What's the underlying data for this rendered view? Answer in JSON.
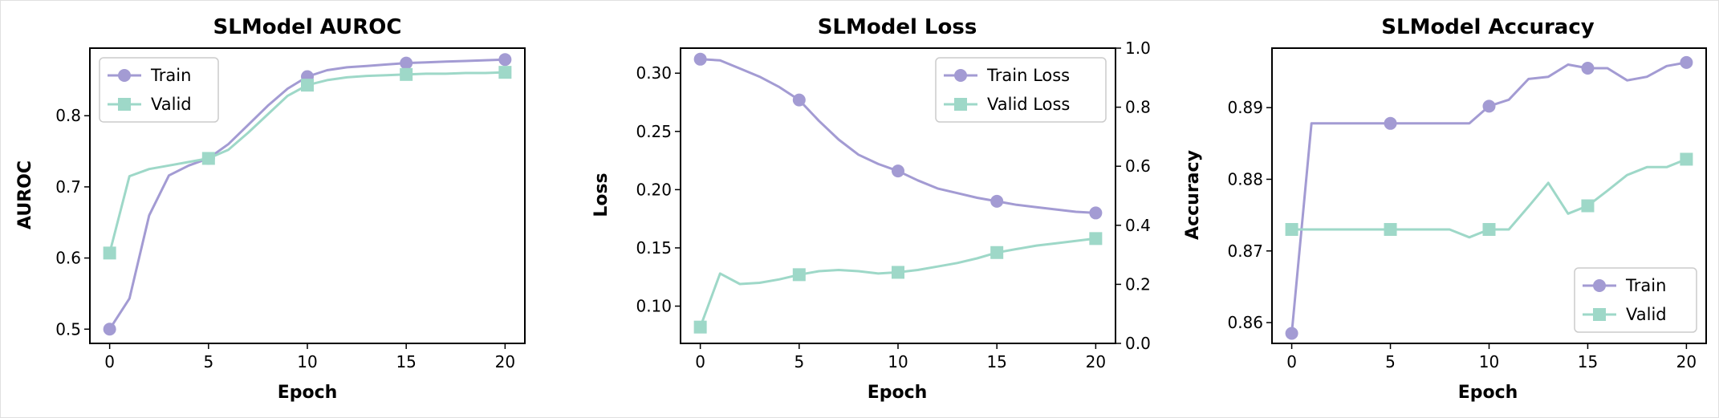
{
  "chart_data": [
    {
      "type": "line",
      "title": "SLModel AUROC",
      "xlabel": "Epoch",
      "ylabel": "AUROC",
      "xlim": [
        -1,
        21
      ],
      "ylim": [
        0.48,
        0.895
      ],
      "xticks": [
        0,
        5,
        10,
        15,
        20
      ],
      "yticks": [
        0.5,
        0.6,
        0.7,
        0.8
      ],
      "legend_position": "upper-left",
      "x": [
        0,
        1,
        2,
        3,
        4,
        5,
        6,
        7,
        8,
        9,
        10,
        11,
        12,
        13,
        14,
        15,
        16,
        17,
        18,
        19,
        20
      ],
      "series": [
        {
          "name": "Train",
          "color": "#A39BD3",
          "marker": "circle",
          "values": [
            0.5,
            0.543,
            0.66,
            0.716,
            0.73,
            0.74,
            0.76,
            0.787,
            0.814,
            0.838,
            0.855,
            0.864,
            0.868,
            0.87,
            0.872,
            0.874,
            0.875,
            0.876,
            0.877,
            0.878,
            0.879
          ]
        },
        {
          "name": "Valid",
          "color": "#9ED8C8",
          "marker": "square",
          "values": [
            0.607,
            0.715,
            0.725,
            0.73,
            0.735,
            0.74,
            0.752,
            0.776,
            0.802,
            0.828,
            0.843,
            0.85,
            0.854,
            0.856,
            0.857,
            0.858,
            0.859,
            0.859,
            0.86,
            0.86,
            0.861
          ]
        }
      ]
    },
    {
      "type": "line",
      "title": "SLModel Loss",
      "xlabel": "Epoch",
      "ylabel": "Loss",
      "xlim": [
        -1,
        21
      ],
      "ylim": [
        0.068,
        0.3215
      ],
      "y2lim": [
        0.0,
        1.0
      ],
      "xticks": [
        0,
        5,
        10,
        15,
        20
      ],
      "yticks": [
        0.1,
        0.15,
        0.2,
        0.25,
        0.3
      ],
      "y2ticks": [
        0.0,
        0.2,
        0.4,
        0.6,
        0.8,
        1.0
      ],
      "legend_position": "upper-right",
      "x": [
        0,
        1,
        2,
        3,
        4,
        5,
        6,
        7,
        8,
        9,
        10,
        11,
        12,
        13,
        14,
        15,
        16,
        17,
        18,
        19,
        20
      ],
      "series": [
        {
          "name": "Train Loss",
          "color": "#A39BD3",
          "marker": "circle",
          "values": [
            0.312,
            0.311,
            0.304,
            0.297,
            0.288,
            0.277,
            0.259,
            0.243,
            0.23,
            0.222,
            0.216,
            0.208,
            0.201,
            0.197,
            0.193,
            0.19,
            0.187,
            0.185,
            0.183,
            0.181,
            0.18
          ]
        },
        {
          "name": "Valid Loss",
          "color": "#9ED8C8",
          "marker": "square",
          "values": [
            0.082,
            0.128,
            0.119,
            0.12,
            0.123,
            0.127,
            0.13,
            0.131,
            0.13,
            0.128,
            0.129,
            0.131,
            0.134,
            0.137,
            0.141,
            0.146,
            0.149,
            0.152,
            0.154,
            0.156,
            0.158
          ]
        }
      ]
    },
    {
      "type": "line",
      "title": "SLModel Accuracy",
      "xlabel": "Epoch",
      "ylabel": "Accuracy",
      "xlim": [
        -1,
        21
      ],
      "ylim": [
        0.8571,
        0.8983
      ],
      "xticks": [
        0,
        5,
        10,
        15,
        20
      ],
      "yticks": [
        0.86,
        0.87,
        0.88,
        0.89
      ],
      "legend_position": "lower-right",
      "x": [
        0,
        1,
        2,
        3,
        4,
        5,
        6,
        7,
        8,
        9,
        10,
        11,
        12,
        13,
        14,
        15,
        16,
        17,
        18,
        19,
        20
      ],
      "series": [
        {
          "name": "Train",
          "color": "#A39BD3",
          "marker": "circle",
          "values": [
            0.8585,
            0.8878,
            0.8878,
            0.8878,
            0.8878,
            0.8878,
            0.8878,
            0.8878,
            0.8878,
            0.8878,
            0.8902,
            0.8911,
            0.894,
            0.8943,
            0.896,
            0.8955,
            0.8955,
            0.8938,
            0.8943,
            0.8958,
            0.8963
          ]
        },
        {
          "name": "Valid",
          "color": "#9ED8C8",
          "marker": "square",
          "values": [
            0.873,
            0.873,
            0.873,
            0.873,
            0.873,
            0.873,
            0.873,
            0.873,
            0.873,
            0.8719,
            0.873,
            0.873,
            0.8762,
            0.8795,
            0.8752,
            0.8763,
            0.8784,
            0.8806,
            0.8817,
            0.8817,
            0.8828
          ]
        }
      ]
    }
  ]
}
